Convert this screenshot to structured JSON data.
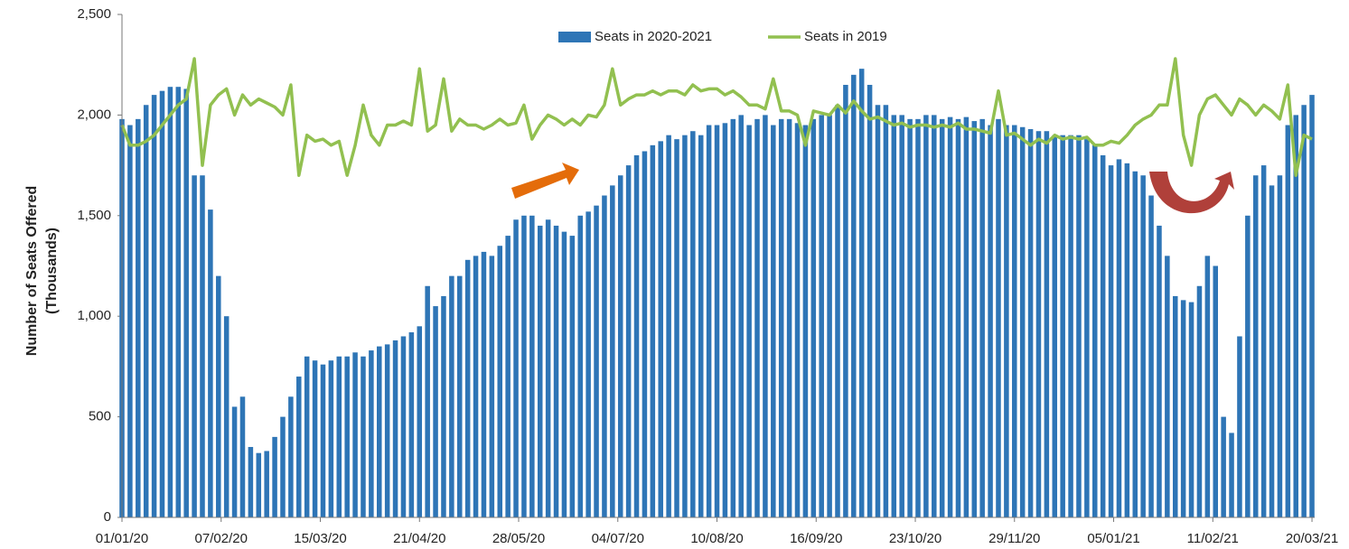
{
  "chart_data": {
    "type": "bar_line",
    "y_label": [
      "Number of Seats Offered",
      "(Thousands)"
    ],
    "x": [
      0,
      3,
      6,
      9,
      12,
      15,
      18,
      21,
      24,
      27,
      30,
      33,
      36,
      39,
      42,
      45,
      48,
      51,
      54,
      57,
      60,
      63,
      66,
      69,
      72,
      75,
      78,
      81,
      84,
      87,
      90,
      93,
      96,
      99,
      102,
      105,
      108,
      111,
      114,
      117,
      120,
      123,
      126,
      129,
      132,
      135,
      138,
      141,
      144,
      147,
      150,
      153,
      156,
      159,
      162,
      165,
      168,
      171,
      174,
      177,
      180,
      183,
      186,
      189,
      192,
      195,
      198,
      201,
      204,
      207,
      210,
      213,
      216,
      219,
      222,
      225,
      228,
      231,
      234,
      237,
      240,
      243,
      246,
      249,
      252,
      255,
      258,
      261,
      264,
      267,
      270,
      273,
      276,
      279,
      282,
      285,
      288,
      291,
      294,
      297,
      300,
      303,
      306,
      309,
      312,
      315,
      318,
      321,
      324,
      327,
      330,
      333,
      336,
      339,
      342,
      345,
      348,
      351,
      354,
      357,
      360,
      363,
      366,
      369,
      372,
      375,
      378,
      381,
      384,
      387,
      390,
      393,
      396,
      399,
      402,
      405,
      408,
      411,
      414,
      417,
      420,
      423,
      426,
      429,
      432,
      435,
      438,
      441,
      444
    ],
    "xlim": [
      0,
      445
    ],
    "xticks": [
      {
        "value": 0,
        "label": "01/01/20"
      },
      {
        "value": 37,
        "label": "07/02/20"
      },
      {
        "value": 74,
        "label": "15/03/20"
      },
      {
        "value": 111,
        "label": "21/04/20"
      },
      {
        "value": 148,
        "label": "28/05/20"
      },
      {
        "value": 185,
        "label": "04/07/20"
      },
      {
        "value": 222,
        "label": "10/08/20"
      },
      {
        "value": 259,
        "label": "16/09/20"
      },
      {
        "value": 296,
        "label": "23/10/20"
      },
      {
        "value": 333,
        "label": "29/11/20"
      },
      {
        "value": 370,
        "label": "05/01/21"
      },
      {
        "value": 407,
        "label": "11/02/21"
      },
      {
        "value": 444,
        "label": "20/03/21"
      }
    ],
    "ylim": [
      0,
      2500
    ],
    "yticks": [
      0,
      500,
      {
        "value": 1000,
        "label": "1,000"
      },
      {
        "value": 1500,
        "label": "1,500"
      },
      {
        "value": 2000,
        "label": "2,000"
      },
      {
        "value": 2500,
        "label": "2,500"
      }
    ],
    "series": [
      {
        "name": "Seats in 2020-2021",
        "kind": "bar",
        "color": "#2e75b6",
        "values": [
          1980,
          1950,
          1980,
          2050,
          2100,
          2120,
          2140,
          2140,
          2130,
          1700,
          1700,
          1530,
          1200,
          1000,
          550,
          600,
          350,
          320,
          330,
          400,
          500,
          600,
          700,
          800,
          780,
          760,
          780,
          800,
          800,
          820,
          800,
          830,
          850,
          860,
          880,
          900,
          920,
          950,
          1150,
          1050,
          1100,
          1200,
          1200,
          1280,
          1300,
          1320,
          1300,
          1350,
          1400,
          1480,
          1500,
          1500,
          1450,
          1480,
          1450,
          1420,
          1400,
          1500,
          1520,
          1550,
          1600,
          1650,
          1700,
          1750,
          1800,
          1820,
          1850,
          1870,
          1900,
          1880,
          1900,
          1920,
          1900,
          1950,
          1950,
          1960,
          1980,
          2000,
          1950,
          1980,
          2000,
          1950,
          1980,
          1980,
          1960,
          1950,
          1980,
          2000,
          2000,
          2050,
          2150,
          2200,
          2230,
          2150,
          2050,
          2050,
          2000,
          2000,
          1980,
          1980,
          2000,
          2000,
          1980,
          1990,
          1980,
          1990,
          1970,
          1980,
          1950,
          1980,
          1950,
          1950,
          1940,
          1930,
          1920,
          1920,
          1900,
          1900,
          1900,
          1900,
          1880,
          1850,
          1800,
          1750,
          1780,
          1760,
          1720,
          1700,
          1600,
          1450,
          1300,
          1100,
          1080,
          1070,
          1150,
          1300,
          1250,
          500,
          420,
          900,
          1500,
          1700,
          1750,
          1650,
          1700,
          1950,
          2000,
          2050,
          2100
        ]
      },
      {
        "name": "Seats in 2019",
        "kind": "line",
        "color": "#92c050",
        "values": [
          1950,
          1850,
          1850,
          1870,
          1900,
          1950,
          2000,
          2050,
          2080,
          2280,
          1750,
          2050,
          2100,
          2130,
          2000,
          2100,
          2050,
          2080,
          2060,
          2040,
          2000,
          2150,
          1700,
          1900,
          1870,
          1880,
          1850,
          1870,
          1700,
          1850,
          2050,
          1900,
          1850,
          1950,
          1950,
          1970,
          1950,
          2230,
          1920,
          1950,
          2180,
          1920,
          1980,
          1950,
          1950,
          1930,
          1950,
          1980,
          1950,
          1960,
          2050,
          1880,
          1950,
          2000,
          1980,
          1950,
          1980,
          1950,
          2000,
          1990,
          2050,
          2230,
          2050,
          2080,
          2100,
          2100,
          2120,
          2100,
          2120,
          2120,
          2100,
          2150,
          2120,
          2130,
          2130,
          2100,
          2120,
          2090,
          2050,
          2050,
          2030,
          2180,
          2020,
          2020,
          2000,
          1850,
          2020,
          2010,
          2000,
          2050,
          2010,
          2070,
          2020,
          1980,
          1990,
          1970,
          1950,
          1960,
          1940,
          1950,
          1950,
          1940,
          1950,
          1940,
          1960,
          1930,
          1930,
          1920,
          1910,
          2120,
          1900,
          1910,
          1880,
          1850,
          1880,
          1860,
          1900,
          1880,
          1890,
          1880,
          1890,
          1850,
          1850,
          1870,
          1860,
          1900,
          1950,
          1980,
          2000,
          2050,
          2050,
          2280,
          1900,
          1750,
          2000,
          2080,
          2100,
          2050,
          2000,
          2080,
          2050,
          2000,
          2050,
          2020,
          1980,
          2150,
          1700,
          1900,
          1880
        ]
      }
    ]
  }
}
